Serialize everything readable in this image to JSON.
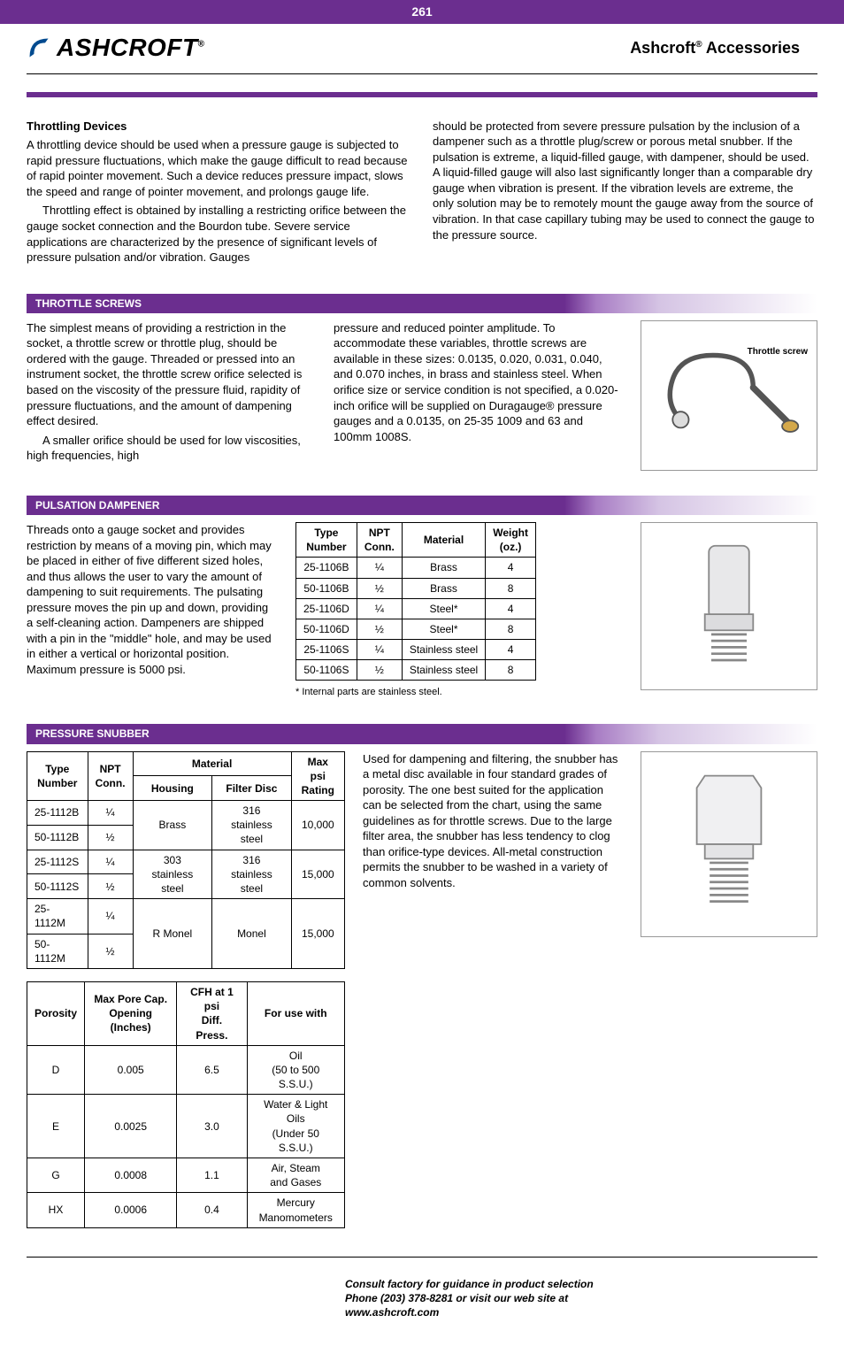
{
  "page_number": "261",
  "brand": "ASHCROFT",
  "header_title_pre": "Ashcroft",
  "header_title_post": " Accessories",
  "colors": {
    "purple": "#6b2e8f"
  },
  "intro": {
    "heading": "Throttling Devices",
    "left_p1": "A throttling device should be used when a pressure gauge is subjected to rapid pressure fluctuations, which make the gauge difficult to read because of rapid pointer movement. Such a device reduces pressure impact, slows the speed and range of pointer movement, and prolongs gauge life.",
    "left_p2": "Throttling effect is obtained by installing a restricting orifice between the gauge socket connection and the Bourdon tube. Severe service applications are characterized by the presence of significant levels of pressure pulsation and/or vibration. Gauges",
    "right_p1": "should be protected from severe pressure pulsation by the inclusion of a dampener such as a throttle plug/screw or porous metal snubber. If the pulsation is extreme, a liquid-filled gauge, with dampener, should be used. A liquid-filled gauge will also last significantly longer than a comparable dry gauge when vibration is present. If the vibration levels are extreme, the only solution may be to remotely mount the gauge away from the source of vibration. In that case capillary tubing may be used to connect the gauge to the pressure source."
  },
  "throttle": {
    "title": "THROTTLE SCREWS",
    "col1_p1": "The simplest means of providing a restriction in the socket, a throttle screw or throttle plug, should be ordered with the gauge. Threaded or pressed into an instrument socket, the throttle screw orifice selected is based on the viscosity of the pressure fluid, rapidity of pressure fluctuations, and the amount of dampening effect desired.",
    "col1_p2": "A smaller orifice should be used for low viscosities, high frequencies, high",
    "col2_p1": "pressure and reduced pointer amplitude. To accommodate these variables, throttle screws are available in these sizes: 0.0135, 0.020, 0.031, 0.040, and 0.070 inches, in brass and stainless steel. When orifice size or service condition is not specified, a 0.020-inch orifice will be supplied on Duragauge® pressure gauges and a 0.0135, on 25-35 1009 and 63 and 100mm 1008S.",
    "img_label": "Throttle screw"
  },
  "pulsation": {
    "title": "PULSATION DAMPENER",
    "text": "Threads onto a gauge socket and provides restriction by means of a moving pin, which may be placed in either of five different sized holes, and thus allows the user to vary the amount of dampening to suit requirements. The pulsating pressure moves the pin up and down, providing a self-cleaning action. Dampeners are shipped with a pin in the \"middle\" hole, and may be used in either a vertical or horizontal position. Maximum pressure is 5000 psi.",
    "table": {
      "headers": [
        "Type\nNumber",
        "NPT\nConn.",
        "Material",
        "Weight\n(oz.)"
      ],
      "rows": [
        [
          "25-1106B",
          "¼",
          "Brass",
          "4"
        ],
        [
          "50-1106B",
          "½",
          "Brass",
          "8"
        ],
        [
          "25-1106D",
          "¼",
          "Steel*",
          "4"
        ],
        [
          "50-1106D",
          "½",
          "Steel*",
          "8"
        ],
        [
          "25-1106S",
          "¼",
          "Stainless steel",
          "4"
        ],
        [
          "50-1106S",
          "½",
          "Stainless steel",
          "8"
        ]
      ]
    },
    "footnote": "* Internal parts are stainless steel."
  },
  "snubber": {
    "title": "PRESSURE SNUBBER",
    "text": "Used for dampening and filtering, the snubber has a metal disc available in four standard grades of porosity. The one best suited for the application can be selected from the chart, using the same guidelines as for throttle screws. Due to the large filter area, the snubber has less tendency to clog than orifice-type devices. All-metal construction permits the snubber to be washed in a variety of common solvents.",
    "table1": {
      "h_type": "Type\nNumber",
      "h_npt": "NPT\nConn.",
      "h_material": "Material",
      "h_housing": "Housing",
      "h_disc": "Filter Disc",
      "h_max": "Max psi\nRating",
      "rows": [
        [
          "25-1112B",
          "¼",
          "Brass",
          "316\nstainless steel",
          "10,000"
        ],
        [
          "50-1112B",
          "½",
          "",
          "",
          ""
        ],
        [
          "25-1112S",
          "¼",
          "303\nstainless steel",
          "316\nstainless steel",
          "15,000"
        ],
        [
          "50-1112S",
          "½",
          "",
          "",
          ""
        ],
        [
          "25-1112M",
          "¼",
          "R Monel",
          "Monel",
          "15,000"
        ],
        [
          "50-1112M",
          "½",
          "",
          "",
          ""
        ]
      ]
    },
    "table2": {
      "headers": [
        "Porosity",
        "Max Pore Cap.\nOpening (Inches)",
        "CFH at 1 psi\nDiff. Press.",
        "For use with"
      ],
      "rows": [
        [
          "D",
          "0.005",
          "6.5",
          "Oil\n(50 to 500 S.S.U.)"
        ],
        [
          "E",
          "0.0025",
          "3.0",
          "Water & Light Oils\n(Under 50 S.S.U.)"
        ],
        [
          "G",
          "0.0008",
          "1.1",
          "Air, Steam\nand Gases"
        ],
        [
          "HX",
          "0.0006",
          "0.4",
          "Mercury\nManomometers"
        ]
      ]
    }
  },
  "footer": {
    "l1": "Consult factory for guidance in product selection",
    "l2": "Phone (203) 378-8281 or visit our web site at",
    "l3": "www.ashcroft.com"
  }
}
